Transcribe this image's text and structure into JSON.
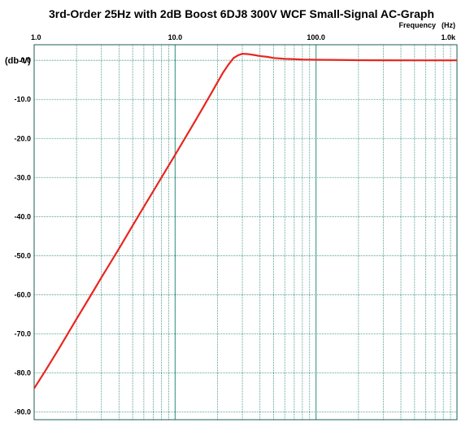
{
  "chart_data": {
    "type": "line",
    "title": "3rd-Order 25Hz with 2dB Boost 6DJ8 300V WCF Small-Signal AC-Graph",
    "xlabel": "Frequency",
    "xunit": "(Hz)",
    "ylabel": "(db-V)",
    "x_scale": "log",
    "xlim": [
      1.0,
      1000.0
    ],
    "ylim": [
      -92.0,
      4.0
    ],
    "x_tick_labels": [
      {
        "value": 1,
        "label": "1.0"
      },
      {
        "value": 10,
        "label": "10.0"
      },
      {
        "value": 100,
        "label": "100.0"
      },
      {
        "value": 1000,
        "label": "1.0k"
      }
    ],
    "y_tick_labels": [
      {
        "value": 0,
        "label": "0.0"
      },
      {
        "value": -10,
        "label": "-10.0"
      },
      {
        "value": -20,
        "label": "-20.0"
      },
      {
        "value": -30,
        "label": "-30.0"
      },
      {
        "value": -40,
        "label": "-40.0"
      },
      {
        "value": -50,
        "label": "-50.0"
      },
      {
        "value": -60,
        "label": "-60.0"
      },
      {
        "value": -70,
        "label": "-70.0"
      },
      {
        "value": -80,
        "label": "-80.0"
      },
      {
        "value": -90,
        "label": "-90.0"
      }
    ],
    "grid": true,
    "line_color": "#e8261f",
    "grid_color": "#2e8b7a",
    "series": [
      {
        "x": [
          1.0,
          1.2,
          1.5,
          2.0,
          2.5,
          3.0,
          4.0,
          5.0,
          6.0,
          7.0,
          8.0,
          10.0,
          12.0,
          14.0,
          16.0,
          18.0,
          20.0,
          22.0,
          24.0,
          26.0,
          28.0,
          30.0,
          33.0,
          36.0,
          40.0,
          45.0,
          50.0,
          60.0,
          70.0,
          80.0,
          100.0,
          150.0,
          200.0,
          300.0,
          500.0,
          700.0,
          1000.0
        ],
        "y": [
          -84.0,
          -79.5,
          -73.8,
          -66.2,
          -60.4,
          -55.6,
          -48.2,
          -42.3,
          -37.5,
          -33.5,
          -30.0,
          -24.2,
          -19.4,
          -15.3,
          -11.7,
          -8.5,
          -5.6,
          -3.0,
          -1.0,
          0.6,
          1.3,
          1.7,
          1.6,
          1.4,
          1.1,
          0.9,
          0.6,
          0.4,
          0.3,
          0.2,
          0.15,
          0.1,
          0.05,
          0.02,
          0.0,
          0.0,
          0.0
        ]
      }
    ]
  }
}
